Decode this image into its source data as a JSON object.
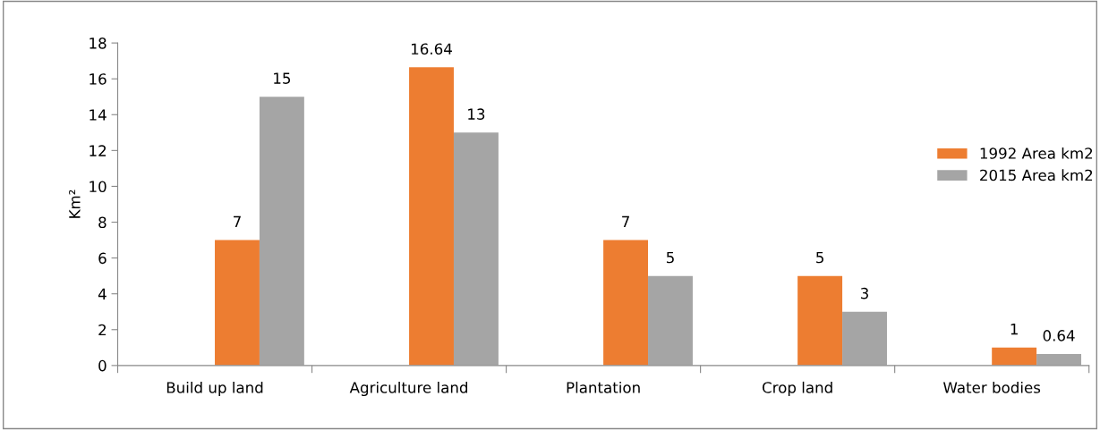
{
  "chart_data": {
    "type": "bar",
    "ylabel": "Km²",
    "categories": [
      "Build up land",
      "Agriculture land",
      "Plantation",
      "Crop land",
      "Water bodies"
    ],
    "series": [
      {
        "name": "1992 Area km2",
        "color": "#ed7d31",
        "values": [
          7,
          16.64,
          7,
          5,
          1
        ]
      },
      {
        "name": "2015 Area km2",
        "color": "#a5a5a5",
        "values": [
          15,
          13,
          5,
          3,
          0.64
        ]
      }
    ],
    "ylim": [
      0,
      18
    ],
    "yticks": [
      0,
      2,
      4,
      6,
      8,
      10,
      12,
      14,
      16,
      18
    ],
    "data_labels": true,
    "grid": false,
    "legend": "right"
  }
}
